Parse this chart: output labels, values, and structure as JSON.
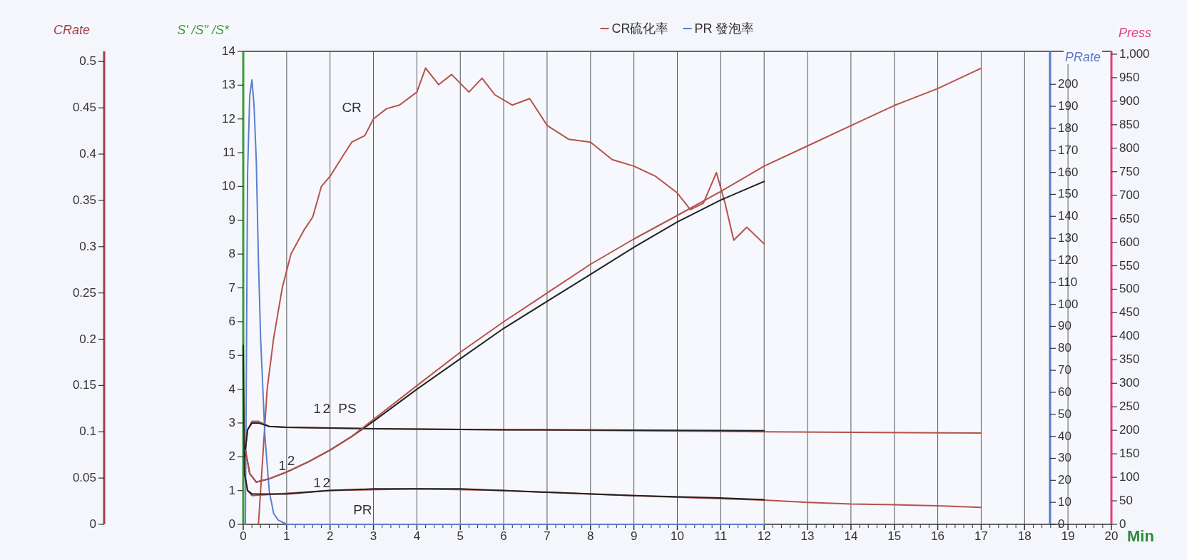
{
  "chart_data": [
    {
      "type": "line",
      "xlabel": "Min",
      "ylabel": "S' /S\" /S*",
      "y2label": "CRate",
      "y3label": "PRate",
      "xlim": [
        0,
        20
      ],
      "xticks": [
        0,
        1,
        2,
        3,
        4,
        5,
        6,
        7,
        8,
        9,
        10,
        11,
        12,
        13,
        14,
        15,
        16,
        17,
        18,
        19,
        20
      ],
      "ylim": [
        0,
        14
      ],
      "yticks": [
        0,
        1,
        2,
        3,
        4,
        5,
        6,
        7,
        8,
        9,
        10,
        11,
        12,
        13,
        14
      ],
      "y2lim": [
        0,
        0.511
      ],
      "y2ticks": [
        0,
        0.05,
        0.1,
        0.15,
        0.2,
        0.25,
        0.3,
        0.35,
        0.4,
        0.45,
        0.5
      ],
      "y3lim": [
        0,
        215
      ],
      "y3ticks": [
        0,
        10,
        20,
        30,
        40,
        50,
        60,
        70,
        80,
        90,
        100,
        110,
        120,
        130,
        140,
        150,
        160,
        170,
        180,
        190,
        200
      ],
      "grid": "x",
      "legend": "top",
      "line_style": "solid",
      "marker": "none",
      "series": [
        {
          "name": "CR硫化率",
          "color": "#b5524a",
          "axis": "y2",
          "x": [
            0.35,
            0.45,
            0.55,
            0.7,
            0.9,
            1.1,
            1.4,
            1.6,
            1.8,
            2.0,
            2.2,
            2.5,
            2.8,
            3.0,
            3.3,
            3.6,
            4.0,
            4.2,
            4.5,
            4.8,
            5.2,
            5.5,
            5.8,
            6.2,
            6.6,
            7.0,
            7.5,
            8.0,
            8.5,
            9.0,
            9.5,
            10.0,
            10.3,
            10.6,
            10.9,
            11.1,
            11.3,
            11.6,
            12.0
          ],
          "values": [
            0,
            0.073,
            0.146,
            0.201,
            0.256,
            0.292,
            0.318,
            0.332,
            0.365,
            0.376,
            0.391,
            0.413,
            0.42,
            0.438,
            0.449,
            0.453,
            0.467,
            0.493,
            0.475,
            0.486,
            0.467,
            0.482,
            0.464,
            0.453,
            0.46,
            0.431,
            0.416,
            0.413,
            0.394,
            0.387,
            0.376,
            0.358,
            0.34,
            0.347,
            0.38,
            0.347,
            0.307,
            0.321,
            0.303
          ]
        },
        {
          "name": "PR 發泡率",
          "color": "#5b7fd0",
          "axis": "y3",
          "x": [
            0.05,
            0.1,
            0.15,
            0.2,
            0.25,
            0.3,
            0.35,
            0.4,
            0.5,
            0.6,
            0.7,
            0.8,
            1.0,
            12.0
          ],
          "values": [
            0,
            160,
            195,
            202,
            190,
            165,
            120,
            85,
            40,
            15,
            5,
            2,
            0,
            0
          ]
        },
        {
          "color": "#222222",
          "x": [
            0.05,
            0.15,
            0.3,
            0.6,
            1.0,
            1.5,
            2.0,
            2.5,
            3.0,
            4.0,
            5.0,
            6.0,
            7.0,
            8.0,
            9.0,
            10.0,
            11.0,
            12.0
          ],
          "values": [
            2.2,
            1.5,
            1.25,
            1.35,
            1.55,
            1.85,
            2.2,
            2.6,
            3.05,
            4.0,
            4.9,
            5.8,
            6.6,
            7.4,
            8.2,
            8.95,
            9.6,
            10.15
          ]
        },
        {
          "color": "#b5524a",
          "x": [
            0.03,
            0.1,
            0.2,
            0.35,
            0.6,
            1.0,
            3.0,
            6.0,
            12.0,
            17.0
          ],
          "values": [
            2.0,
            2.8,
            3.05,
            3.05,
            2.9,
            2.87,
            2.83,
            2.8,
            2.74,
            2.7
          ]
        },
        {
          "color": "#222222",
          "x": [
            0.03,
            0.1,
            0.2,
            0.35,
            0.6,
            1.0,
            3.0,
            6.0,
            12.0
          ],
          "values": [
            2.0,
            2.8,
            3.0,
            3.0,
            2.9,
            2.87,
            2.83,
            2.8,
            2.77
          ]
        },
        {
          "color": "#b5524a",
          "x": [
            0.03,
            0.1,
            0.2,
            1.0,
            2.0,
            4.0,
            6.0,
            8.0,
            10.0,
            12.0,
            13.0,
            14.0,
            15.0,
            16.0,
            17.0
          ],
          "values": [
            1.5,
            1.0,
            0.85,
            0.92,
            1.0,
            1.05,
            1.0,
            0.9,
            0.8,
            0.72,
            0.65,
            0.6,
            0.58,
            0.55,
            0.5
          ]
        },
        {
          "color": "#222222",
          "x": [
            0.0,
            0.03,
            0.1,
            0.2,
            1.0,
            2.0,
            3.0,
            5.0,
            7.0,
            9.0,
            11.0,
            12.0
          ],
          "values": [
            5.3,
            1.5,
            1.0,
            0.9,
            0.9,
            1.0,
            1.05,
            1.05,
            0.95,
            0.85,
            0.78,
            0.73
          ]
        }
      ],
      "annotations": [
        "CR",
        "PR",
        "1",
        "2",
        "PS",
        "1",
        "2",
        "1",
        "2"
      ]
    },
    {
      "type": "line",
      "ylabel": "Press",
      "tick_labels": "y",
      "xlim": [
        0,
        20
      ],
      "ylim": [
        0,
        1006
      ],
      "yticks": [
        0,
        50,
        100,
        150,
        200,
        250,
        300,
        350,
        400,
        450,
        500,
        550,
        600,
        650,
        700,
        750,
        800,
        850,
        900,
        950,
        {
          "value": 1000,
          "label": "1,000"
        }
      ],
      "series": [
        {
          "color": "#b5524a",
          "x": [
            0.05,
            0.15,
            0.3,
            0.6,
            1.0,
            1.5,
            2.0,
            2.5,
            3.0,
            4.0,
            5.0,
            6.0,
            7.0,
            8.0,
            9.0,
            10.0,
            11.0,
            12.0,
            13.0,
            14.0,
            15.0,
            16.0,
            17.0
          ],
          "values": [
            158,
            108,
            90,
            97,
            111,
            133,
            158,
            187,
            223,
            295,
            366,
            431,
            492,
            553,
            607,
            657,
            708,
            762,
            805,
            848,
            891,
            927,
            970
          ]
        }
      ]
    }
  ]
}
